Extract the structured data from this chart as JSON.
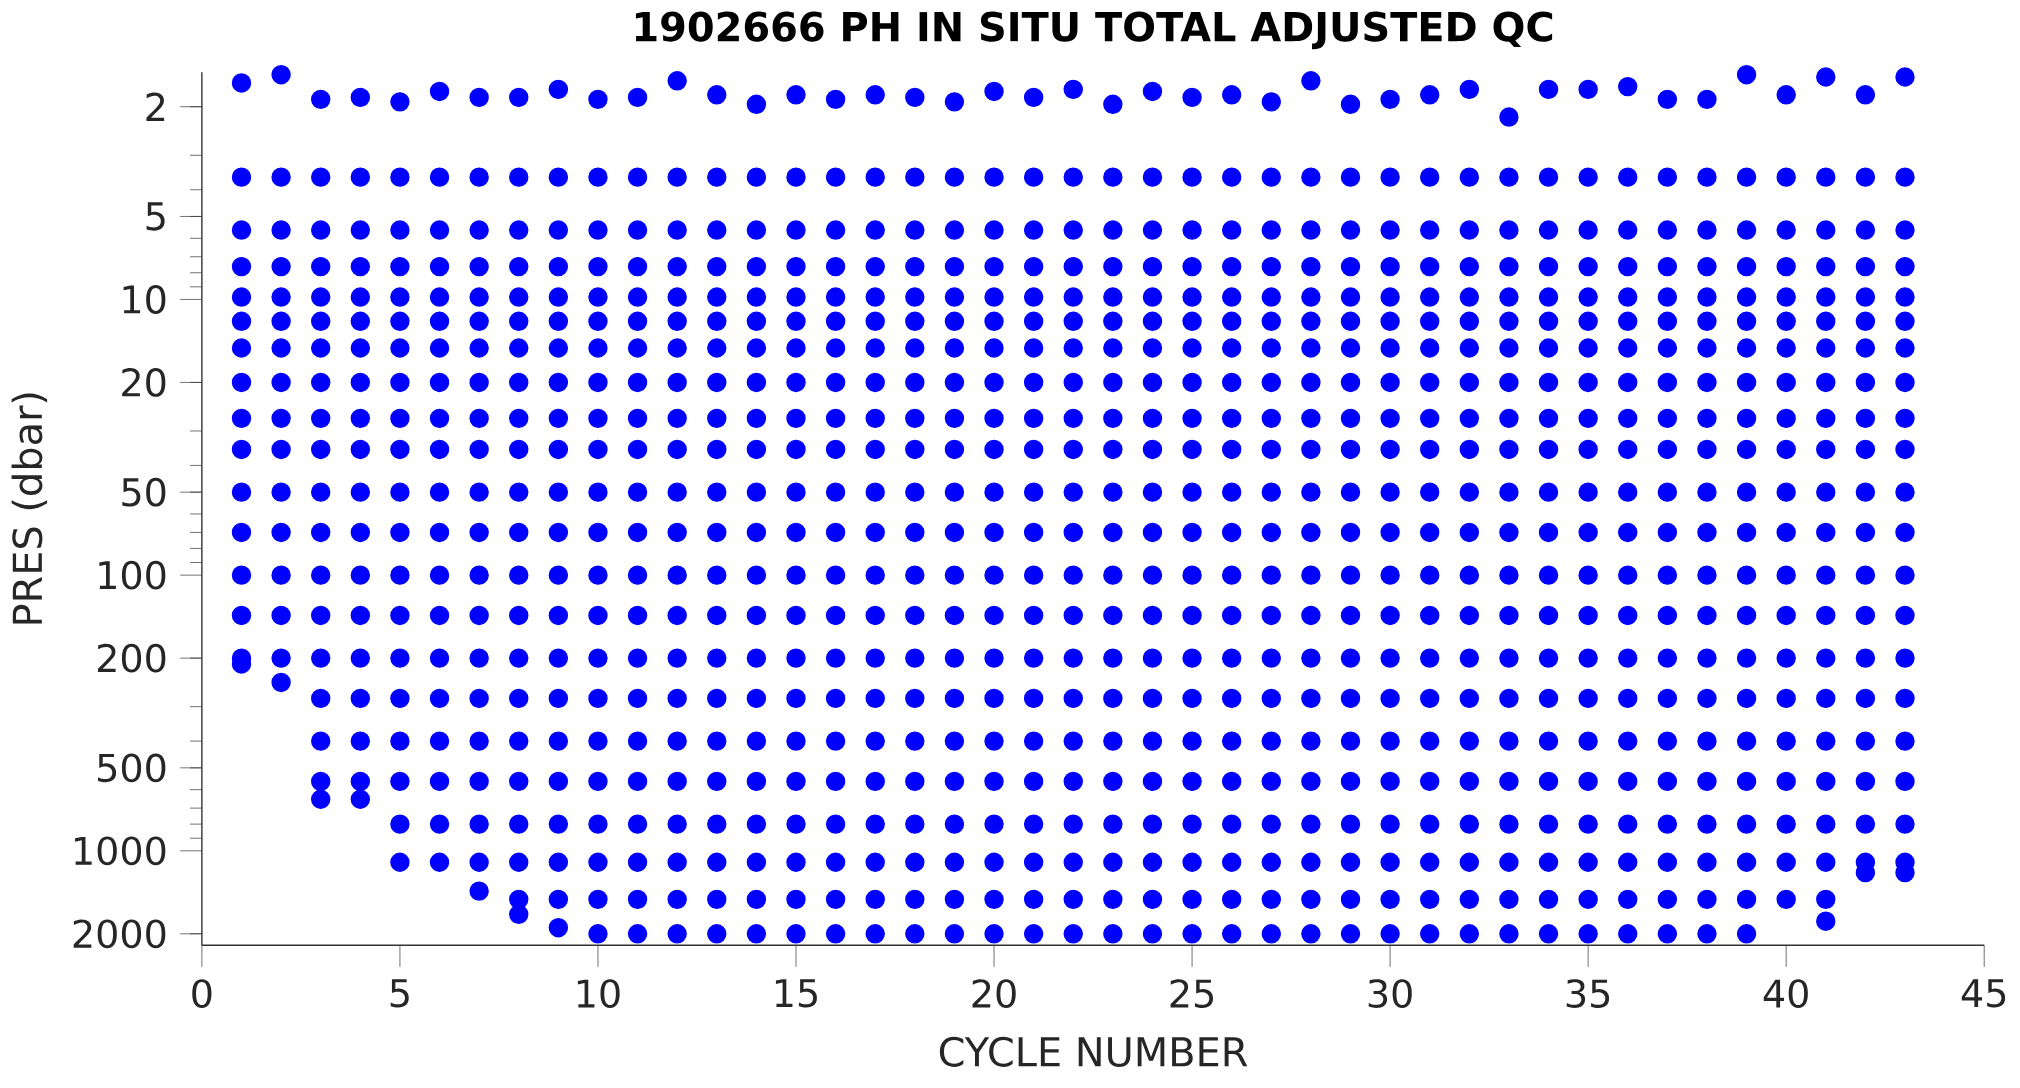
{
  "chart_data": {
    "type": "scatter",
    "title": "1902666  PH IN SITU TOTAL ADJUSTED QC",
    "xlabel": "CYCLE NUMBER",
    "ylabel": "PRES (dbar)",
    "log": "y",
    "xlim": [
      0,
      45
    ],
    "xticks": [
      0,
      5,
      10,
      15,
      20,
      25,
      30,
      35,
      40,
      45
    ],
    "ylim": [
      2200,
      1.5
    ],
    "yticks": [
      2,
      5,
      10,
      20,
      50,
      100,
      200,
      500,
      1000,
      2000
    ],
    "x": [
      1,
      1,
      1,
      1,
      1,
      1,
      1,
      1,
      1,
      1,
      1,
      1,
      1,
      1,
      1,
      1,
      2,
      2,
      2,
      2,
      2,
      2,
      2,
      2,
      2,
      2,
      2,
      2,
      2,
      2,
      2,
      2,
      3,
      3,
      3,
      3,
      3,
      3,
      3,
      3,
      3,
      3,
      3,
      3,
      3,
      3,
      3,
      3,
      3,
      3,
      3,
      4,
      4,
      4,
      4,
      4,
      4,
      4,
      4,
      4,
      4,
      4,
      4,
      4,
      4,
      4,
      4,
      4,
      4,
      4,
      5,
      5,
      5,
      5,
      5,
      5,
      5,
      5,
      5,
      5,
      5,
      5,
      5,
      5,
      5,
      5,
      5,
      5,
      5,
      5,
      6,
      6,
      6,
      6,
      6,
      6,
      6,
      6,
      6,
      6,
      6,
      6,
      6,
      6,
      6,
      6,
      6,
      6,
      6,
      6,
      7,
      7,
      7,
      7,
      7,
      7,
      7,
      7,
      7,
      7,
      7,
      7,
      7,
      7,
      7,
      7,
      7,
      7,
      7,
      7,
      7,
      8,
      8,
      8,
      8,
      8,
      8,
      8,
      8,
      8,
      8,
      8,
      8,
      8,
      8,
      8,
      8,
      8,
      8,
      8,
      8,
      8,
      8,
      9,
      9,
      9,
      9,
      9,
      9,
      9,
      9,
      9,
      9,
      9,
      9,
      9,
      9,
      9,
      9,
      9,
      9,
      9,
      9,
      9,
      9,
      10,
      10,
      10,
      10,
      10,
      10,
      10,
      10,
      10,
      10,
      10,
      10,
      10,
      10,
      10,
      10,
      10,
      10,
      10,
      10,
      10,
      10,
      11,
      11,
      11,
      11,
      11,
      11,
      11,
      11,
      11,
      11,
      11,
      11,
      11,
      11,
      11,
      11,
      11,
      11,
      11,
      11,
      11,
      11,
      12,
      12,
      12,
      12,
      12,
      12,
      12,
      12,
      12,
      12,
      12,
      12,
      12,
      12,
      12,
      12,
      12,
      12,
      12,
      12,
      12,
      12,
      13,
      13,
      13,
      13,
      13,
      13,
      13,
      13,
      13,
      13,
      13,
      13,
      13,
      13,
      13,
      13,
      13,
      13,
      13,
      13,
      13,
      13,
      14,
      14,
      14,
      14,
      14,
      14,
      14,
      14,
      14,
      14,
      14,
      14,
      14,
      14,
      14,
      14,
      14,
      14,
      14,
      14,
      14,
      14,
      15,
      15,
      15,
      15,
      15,
      15,
      15,
      15,
      15,
      15,
      15,
      15,
      15,
      15,
      15,
      15,
      15,
      15,
      15,
      15,
      15,
      15,
      16,
      16,
      16,
      16,
      16,
      16,
      16,
      16,
      16,
      16,
      16,
      16,
      16,
      16,
      16,
      16,
      16,
      16,
      16,
      16,
      16,
      16,
      17,
      17,
      17,
      17,
      17,
      17,
      17,
      17,
      17,
      17,
      17,
      17,
      17,
      17,
      17,
      17,
      17,
      17,
      17,
      17,
      17,
      17,
      18,
      18,
      18,
      18,
      18,
      18,
      18,
      18,
      18,
      18,
      18,
      18,
      18,
      18,
      18,
      18,
      18,
      18,
      18,
      18,
      18,
      18,
      19,
      19,
      19,
      19,
      19,
      19,
      19,
      19,
      19,
      19,
      19,
      19,
      19,
      19,
      19,
      19,
      19,
      19,
      19,
      19,
      19,
      19,
      20,
      20,
      20,
      20,
      20,
      20,
      20,
      20,
      20,
      20,
      20,
      20,
      20,
      20,
      20,
      20,
      20,
      20,
      20,
      20,
      20,
      20,
      21,
      21,
      21,
      21,
      21,
      21,
      21,
      21,
      21,
      21,
      21,
      21,
      21,
      21,
      21,
      21,
      21,
      21,
      21,
      21,
      21,
      21,
      22,
      22,
      22,
      22,
      22,
      22,
      22,
      22,
      22,
      22,
      22,
      22,
      22,
      22,
      22,
      22,
      22,
      22,
      22,
      22,
      22,
      22,
      23,
      23,
      23,
      23,
      23,
      23,
      23,
      23,
      23,
      23,
      23,
      23,
      23,
      23,
      23,
      23,
      23,
      23,
      23,
      23,
      23,
      23,
      24,
      24,
      24,
      24,
      24,
      24,
      24,
      24,
      24,
      24,
      24,
      24,
      24,
      24,
      24,
      24,
      24,
      24,
      24,
      24,
      24,
      24,
      25,
      25,
      25,
      25,
      25,
      25,
      25,
      25,
      25,
      25,
      25,
      25,
      25,
      25,
      25,
      25,
      25,
      25,
      25,
      25,
      25,
      25,
      26,
      26,
      26,
      26,
      26,
      26,
      26,
      26,
      26,
      26,
      26,
      26,
      26,
      26,
      26,
      26,
      26,
      26,
      26,
      26,
      26,
      26,
      27,
      27,
      27,
      27,
      27,
      27,
      27,
      27,
      27,
      27,
      27,
      27,
      27,
      27,
      27,
      27,
      27,
      27,
      27,
      27,
      27,
      27,
      28,
      28,
      28,
      28,
      28,
      28,
      28,
      28,
      28,
      28,
      28,
      28,
      28,
      28,
      28,
      28,
      28,
      28,
      28,
      28,
      28,
      28,
      29,
      29,
      29,
      29,
      29,
      29,
      29,
      29,
      29,
      29,
      29,
      29,
      29,
      29,
      29,
      29,
      29,
      29,
      29,
      29,
      29,
      29,
      30,
      30,
      30,
      30,
      30,
      30,
      30,
      30,
      30,
      30,
      30,
      30,
      30,
      30,
      30,
      30,
      30,
      30,
      30,
      30,
      30,
      30,
      31,
      31,
      31,
      31,
      31,
      31,
      31,
      31,
      31,
      31,
      31,
      31,
      31,
      31,
      31,
      31,
      31,
      31,
      31,
      31,
      31,
      31,
      32,
      32,
      32,
      32,
      32,
      32,
      32,
      32,
      32,
      32,
      32,
      32,
      32,
      32,
      32,
      32,
      32,
      32,
      32,
      32,
      32,
      32,
      33,
      33,
      33,
      33,
      33,
      33,
      33,
      33,
      33,
      33,
      33,
      33,
      33,
      33,
      33,
      33,
      33,
      33,
      33,
      33,
      33,
      33,
      34,
      34,
      34,
      34,
      34,
      34,
      34,
      34,
      34,
      34,
      34,
      34,
      34,
      34,
      34,
      34,
      34,
      34,
      34,
      34,
      34,
      34,
      35,
      35,
      35,
      35,
      35,
      35,
      35,
      35,
      35,
      35,
      35,
      35,
      35,
      35,
      35,
      35,
      35,
      35,
      35,
      35,
      35,
      35,
      36,
      36,
      36,
      36,
      36,
      36,
      36,
      36,
      36,
      36,
      36,
      36,
      36,
      36,
      36,
      36,
      36,
      36,
      36,
      36,
      36,
      36,
      37,
      37,
      37,
      37,
      37,
      37,
      37,
      37,
      37,
      37,
      37,
      37,
      37,
      37,
      37,
      37,
      37,
      37,
      37,
      37,
      37,
      37,
      38,
      38,
      38,
      38,
      38,
      38,
      38,
      38,
      38,
      38,
      38,
      38,
      38,
      38,
      38,
      38,
      38,
      38,
      38,
      38,
      38,
      38,
      39,
      39,
      39,
      39,
      39,
      39,
      39,
      39,
      39,
      39,
      39,
      39,
      39,
      39,
      39,
      39,
      39,
      39,
      39,
      39,
      39,
      39,
      40,
      40,
      40,
      40,
      40,
      40,
      40,
      40,
      40,
      40,
      40,
      40,
      40,
      40,
      40,
      40,
      40,
      40,
      40,
      40,
      40,
      41,
      41,
      41,
      41,
      41,
      41,
      41,
      41,
      41,
      41,
      41,
      41,
      41,
      41,
      41,
      41,
      41,
      41,
      41,
      41,
      41,
      41,
      42,
      42,
      42,
      42,
      42,
      42,
      42,
      42,
      42,
      42,
      42,
      42,
      42,
      42,
      42,
      42,
      42,
      42,
      42,
      42,
      42,
      43,
      43,
      43,
      43,
      43,
      43,
      43,
      43,
      43,
      43,
      43,
      43,
      43,
      43,
      43,
      43,
      43,
      43,
      43,
      43,
      43
    ],
    "series": [
      {
        "color": "#0000ff",
        "values": [
          1.64,
          3.6,
          5.6,
          7.6,
          9.8,
          12,
          15,
          20,
          27,
          35,
          50,
          70,
          100,
          140,
          200,
          210,
          1.53,
          3.6,
          5.6,
          7.6,
          9.8,
          12,
          15,
          20,
          27,
          35,
          50,
          70,
          100,
          140,
          200,
          245,
          1.88,
          3.6,
          5.6,
          7.6,
          9.8,
          12,
          15,
          20,
          27,
          35,
          50,
          70,
          100,
          140,
          200,
          280,
          400,
          560,
          650,
          1.85,
          3.6,
          5.6,
          7.6,
          9.8,
          12,
          15,
          20,
          27,
          35,
          50,
          70,
          100,
          140,
          200,
          280,
          400,
          560,
          650,
          1.92,
          3.6,
          5.6,
          7.6,
          9.8,
          12,
          15,
          20,
          27,
          35,
          50,
          70,
          100,
          140,
          200,
          280,
          400,
          560,
          800,
          1100,
          1.76,
          3.6,
          5.6,
          7.6,
          9.8,
          12,
          15,
          20,
          27,
          35,
          50,
          70,
          100,
          140,
          200,
          280,
          400,
          560,
          800,
          1100,
          1.85,
          3.6,
          5.6,
          7.6,
          9.8,
          12,
          15,
          20,
          27,
          35,
          50,
          70,
          100,
          140,
          200,
          280,
          400,
          560,
          800,
          1100,
          1400,
          1.85,
          3.6,
          5.6,
          7.6,
          9.8,
          12,
          15,
          20,
          27,
          35,
          50,
          70,
          100,
          140,
          200,
          280,
          400,
          560,
          800,
          1100,
          1500,
          1700,
          1.73,
          3.6,
          5.6,
          7.6,
          9.8,
          12,
          15,
          20,
          27,
          35,
          50,
          70,
          100,
          140,
          200,
          280,
          400,
          560,
          800,
          1100,
          1500,
          1900,
          1.88,
          3.6,
          5.6,
          7.6,
          9.8,
          12,
          15,
          20,
          27,
          35,
          50,
          70,
          100,
          140,
          200,
          280,
          400,
          560,
          800,
          1100,
          1500,
          2000,
          1.85,
          3.6,
          5.6,
          7.6,
          9.8,
          12,
          15,
          20,
          27,
          35,
          50,
          70,
          100,
          140,
          200,
          280,
          400,
          560,
          800,
          1100,
          1500,
          2000,
          1.61,
          3.6,
          5.6,
          7.6,
          9.8,
          12,
          15,
          20,
          27,
          35,
          50,
          70,
          100,
          140,
          200,
          280,
          400,
          560,
          800,
          1100,
          1500,
          2000,
          1.81,
          3.6,
          5.6,
          7.6,
          9.8,
          12,
          15,
          20,
          27,
          35,
          50,
          70,
          100,
          140,
          200,
          280,
          400,
          560,
          800,
          1100,
          1500,
          2000,
          1.96,
          3.6,
          5.6,
          7.6,
          9.8,
          12,
          15,
          20,
          27,
          35,
          50,
          70,
          100,
          140,
          200,
          280,
          400,
          560,
          800,
          1100,
          1500,
          2000,
          1.81,
          3.6,
          5.6,
          7.6,
          9.8,
          12,
          15,
          20,
          27,
          35,
          50,
          70,
          100,
          140,
          200,
          280,
          400,
          560,
          800,
          1100,
          1500,
          2000,
          1.88,
          3.6,
          5.6,
          7.6,
          9.8,
          12,
          15,
          20,
          27,
          35,
          50,
          70,
          100,
          140,
          200,
          280,
          400,
          560,
          800,
          1100,
          1500,
          2000,
          1.81,
          3.6,
          5.6,
          7.6,
          9.8,
          12,
          15,
          20,
          27,
          35,
          50,
          70,
          100,
          140,
          200,
          280,
          400,
          560,
          800,
          1100,
          1500,
          2000,
          1.85,
          3.6,
          5.6,
          7.6,
          9.8,
          12,
          15,
          20,
          27,
          35,
          50,
          70,
          100,
          140,
          200,
          280,
          400,
          560,
          800,
          1100,
          1500,
          2000,
          1.92,
          3.6,
          5.6,
          7.6,
          9.8,
          12,
          15,
          20,
          27,
          35,
          50,
          70,
          100,
          140,
          200,
          280,
          400,
          560,
          800,
          1100,
          1500,
          2000,
          1.76,
          3.6,
          5.6,
          7.6,
          9.8,
          12,
          15,
          20,
          27,
          35,
          50,
          70,
          100,
          140,
          200,
          280,
          400,
          560,
          800,
          1100,
          1500,
          2000,
          1.85,
          3.6,
          5.6,
          7.6,
          9.8,
          12,
          15,
          20,
          27,
          35,
          50,
          70,
          100,
          140,
          200,
          280,
          400,
          560,
          800,
          1100,
          1500,
          2000,
          1.73,
          3.6,
          5.6,
          7.6,
          9.8,
          12,
          15,
          20,
          27,
          35,
          50,
          70,
          100,
          140,
          200,
          280,
          400,
          560,
          800,
          1100,
          1500,
          2000,
          1.96,
          3.6,
          5.6,
          7.6,
          9.8,
          12,
          15,
          20,
          27,
          35,
          50,
          70,
          100,
          140,
          200,
          280,
          400,
          560,
          800,
          1100,
          1500,
          2000,
          1.76,
          3.6,
          5.6,
          7.6,
          9.8,
          12,
          15,
          20,
          27,
          35,
          50,
          70,
          100,
          140,
          200,
          280,
          400,
          560,
          800,
          1100,
          1500,
          2000,
          1.85,
          3.6,
          5.6,
          7.6,
          9.8,
          12,
          15,
          20,
          27,
          35,
          50,
          70,
          100,
          140,
          200,
          280,
          400,
          560,
          800,
          1100,
          1500,
          2000,
          1.81,
          3.6,
          5.6,
          7.6,
          9.8,
          12,
          15,
          20,
          27,
          35,
          50,
          70,
          100,
          140,
          200,
          280,
          400,
          560,
          800,
          1100,
          1500,
          2000,
          1.92,
          3.6,
          5.6,
          7.6,
          9.8,
          12,
          15,
          20,
          27,
          35,
          50,
          70,
          100,
          140,
          200,
          280,
          400,
          560,
          800,
          1100,
          1500,
          2000,
          1.61,
          3.6,
          5.6,
          7.6,
          9.8,
          12,
          15,
          20,
          27,
          35,
          50,
          70,
          100,
          140,
          200,
          280,
          400,
          560,
          800,
          1100,
          1500,
          2000,
          1.96,
          3.6,
          5.6,
          7.6,
          9.8,
          12,
          15,
          20,
          27,
          35,
          50,
          70,
          100,
          140,
          200,
          280,
          400,
          560,
          800,
          1100,
          1500,
          2000,
          1.88,
          3.6,
          5.6,
          7.6,
          9.8,
          12,
          15,
          20,
          27,
          35,
          50,
          70,
          100,
          140,
          200,
          280,
          400,
          560,
          800,
          1100,
          1500,
          2000,
          1.81,
          3.6,
          5.6,
          7.6,
          9.8,
          12,
          15,
          20,
          27,
          35,
          50,
          70,
          100,
          140,
          200,
          280,
          400,
          560,
          800,
          1100,
          1500,
          2000,
          1.73,
          3.6,
          5.6,
          7.6,
          9.8,
          12,
          15,
          20,
          27,
          35,
          50,
          70,
          100,
          140,
          200,
          280,
          400,
          560,
          800,
          1100,
          1500,
          2000,
          2.18,
          3.6,
          5.6,
          7.6,
          9.8,
          12,
          15,
          20,
          27,
          35,
          50,
          70,
          100,
          140,
          200,
          280,
          400,
          560,
          800,
          1100,
          1500,
          2000,
          1.73,
          3.6,
          5.6,
          7.6,
          9.8,
          12,
          15,
          20,
          27,
          35,
          50,
          70,
          100,
          140,
          200,
          280,
          400,
          560,
          800,
          1100,
          1500,
          2000,
          1.73,
          3.6,
          5.6,
          7.6,
          9.8,
          12,
          15,
          20,
          27,
          35,
          50,
          70,
          100,
          140,
          200,
          280,
          400,
          560,
          800,
          1100,
          1500,
          2000,
          1.69,
          3.6,
          5.6,
          7.6,
          9.8,
          12,
          15,
          20,
          27,
          35,
          50,
          70,
          100,
          140,
          200,
          280,
          400,
          560,
          800,
          1100,
          1500,
          2000,
          1.88,
          3.6,
          5.6,
          7.6,
          9.8,
          12,
          15,
          20,
          27,
          35,
          50,
          70,
          100,
          140,
          200,
          280,
          400,
          560,
          800,
          1100,
          1500,
          2000,
          1.88,
          3.6,
          5.6,
          7.6,
          9.8,
          12,
          15,
          20,
          27,
          35,
          50,
          70,
          100,
          140,
          200,
          280,
          400,
          560,
          800,
          1100,
          1500,
          2000,
          1.53,
          3.6,
          5.6,
          7.6,
          9.8,
          12,
          15,
          20,
          27,
          35,
          50,
          70,
          100,
          140,
          200,
          280,
          400,
          560,
          800,
          1100,
          1500,
          2000,
          1.81,
          3.6,
          5.6,
          7.6,
          9.8,
          12,
          15,
          20,
          27,
          35,
          50,
          70,
          100,
          140,
          200,
          280,
          400,
          560,
          800,
          1100,
          1500,
          1.56,
          3.6,
          5.6,
          7.6,
          9.8,
          12,
          15,
          20,
          27,
          35,
          50,
          70,
          100,
          140,
          200,
          280,
          400,
          560,
          800,
          1100,
          1500,
          1800,
          1.81,
          3.6,
          5.6,
          7.6,
          9.8,
          12,
          15,
          20,
          27,
          35,
          50,
          70,
          100,
          140,
          200,
          280,
          400,
          560,
          800,
          1100,
          1200,
          1.56,
          3.6,
          5.6,
          7.6,
          9.8,
          12,
          15,
          20,
          27,
          35,
          50,
          70,
          100,
          140,
          200,
          280,
          400,
          560,
          800,
          1100,
          1200
        ]
      }
    ]
  }
}
